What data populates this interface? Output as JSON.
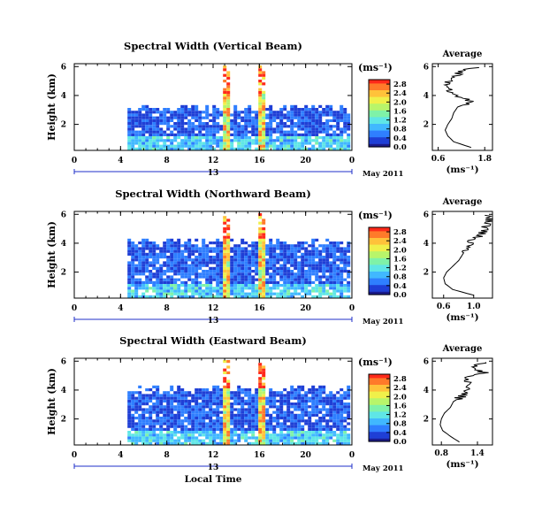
{
  "colors": {
    "colormap": [
      "#1a1a8c",
      "#1f3fd6",
      "#2f7fff",
      "#41b8ff",
      "#5fe6e6",
      "#7ff2a8",
      "#b8f56a",
      "#f0f04a",
      "#ffc23a",
      "#ff7a2a",
      "#ff2a1a"
    ],
    "axis": "#000000",
    "date_axis": "#1f2fc8"
  },
  "chart_data": [
    {
      "type": "heatmap",
      "title": "Spectral Width (Vertical Beam)",
      "ylabel": "Height (km)",
      "x_ticks": [
        "0",
        "4",
        "8",
        "12",
        "16",
        "20",
        "0"
      ],
      "x_range": [
        0,
        24
      ],
      "y_ticks": [
        "2",
        "4",
        "6"
      ],
      "y_range": [
        0.2,
        6.2
      ],
      "date_tick": "13",
      "date_label": "May 2011",
      "colorbar": {
        "unit": "(ms⁻¹)",
        "ticks": [
          "0.0",
          "0.4",
          "0.8",
          "1.2",
          "1.6",
          "2.0",
          "2.4",
          "2.8"
        ],
        "range": [
          0.0,
          3.0
        ]
      },
      "average": {
        "title": "Average",
        "xlabel": "(ms⁻¹)",
        "x_ticks": [
          "0.6",
          "1.8"
        ],
        "x_range": [
          0.45,
          2.0
        ],
        "height": [
          0.4,
          0.8,
          1.2,
          1.6,
          2.0,
          2.4,
          2.8,
          3.2,
          3.6,
          4.0,
          4.4,
          4.8,
          5.2,
          5.6,
          6.0
        ],
        "width": [
          1.45,
          1.0,
          0.85,
          0.78,
          0.85,
          0.95,
          1.0,
          1.1,
          1.5,
          1.05,
          0.9,
          0.8,
          1.05,
          1.1,
          1.6
        ]
      }
    },
    {
      "type": "heatmap",
      "title": "Spectral Width (Northward Beam)",
      "ylabel": "Height (km)",
      "x_ticks": [
        "0",
        "4",
        "8",
        "12",
        "16",
        "20",
        "0"
      ],
      "x_range": [
        0,
        24
      ],
      "y_ticks": [
        "2",
        "4",
        "6"
      ],
      "y_range": [
        0.2,
        6.2
      ],
      "date_tick": "13",
      "date_label": "May 2011",
      "colorbar": {
        "unit": "(ms⁻¹)",
        "ticks": [
          "0.0",
          "0.4",
          "0.8",
          "1.2",
          "1.6",
          "2.0",
          "2.4",
          "2.8"
        ],
        "range": [
          0.0,
          3.0
        ]
      },
      "average": {
        "title": "Average",
        "xlabel": "(ms⁻¹)",
        "x_ticks": [
          "0.6",
          "1.0"
        ],
        "x_range": [
          0.45,
          1.25
        ],
        "height": [
          0.4,
          0.8,
          1.2,
          1.6,
          2.0,
          2.4,
          2.8,
          3.2,
          3.6,
          4.0,
          4.4,
          4.8,
          5.2,
          5.6,
          6.0
        ],
        "width": [
          1.0,
          0.72,
          0.62,
          0.6,
          0.64,
          0.72,
          0.8,
          0.85,
          0.9,
          0.95,
          1.05,
          1.12,
          1.18,
          1.2,
          1.22
        ]
      }
    },
    {
      "type": "heatmap",
      "title": "Spectral Width (Eastward Beam)",
      "ylabel": "Height (km)",
      "xlabel": "Local Time",
      "x_ticks": [
        "0",
        "4",
        "8",
        "12",
        "16",
        "20",
        "0"
      ],
      "x_range": [
        0,
        24
      ],
      "y_ticks": [
        "2",
        "4",
        "6"
      ],
      "y_range": [
        0.2,
        6.2
      ],
      "date_tick": "13",
      "date_label": "May 2011",
      "colorbar": {
        "unit": "(ms⁻¹)",
        "ticks": [
          "0.0",
          "0.4",
          "0.8",
          "1.2",
          "1.6",
          "2.0",
          "2.4",
          "2.8"
        ],
        "range": [
          0.0,
          3.0
        ]
      },
      "average": {
        "title": "Average",
        "xlabel": "(ms⁻¹)",
        "x_ticks": [
          "0.8",
          "1.4"
        ],
        "x_range": [
          0.65,
          1.65
        ],
        "height": [
          0.4,
          0.8,
          1.2,
          1.6,
          2.0,
          2.4,
          2.8,
          3.2,
          3.6,
          4.0,
          4.4,
          4.8,
          5.2,
          5.6,
          6.0
        ],
        "width": [
          1.1,
          0.95,
          0.82,
          0.78,
          0.8,
          0.85,
          0.95,
          1.0,
          1.15,
          1.25,
          1.3,
          1.2,
          1.5,
          1.35,
          1.55
        ]
      }
    }
  ]
}
